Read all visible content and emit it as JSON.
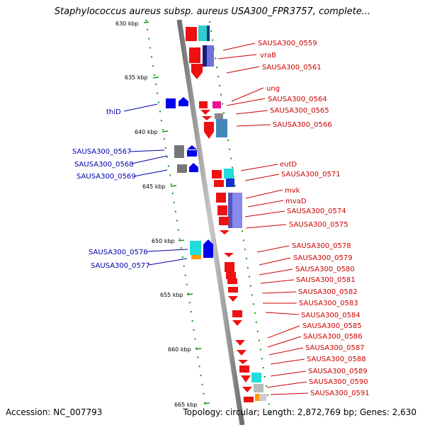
{
  "title": "Staphylococcus aureus subsp. aureus USA300_FPR3757, complete...",
  "footer": {
    "accession": "Accession: NC_007793",
    "topology": "Topology: circular; Length: 2,872,769 bp; Genes: 2,630"
  },
  "colors": {
    "backbone": "#8c8c8c",
    "forward_label": "#cc0000",
    "reverse_label": "#0000aa",
    "tick": "#119911",
    "forward_gene": "#ee1111",
    "reverse_gene": "#0000ee"
  },
  "ticks": [
    {
      "label": "630 kbp",
      "kbp": 630
    },
    {
      "label": "635 kbp",
      "kbp": 635
    },
    {
      "label": "640 kbp",
      "kbp": 640
    },
    {
      "label": "645 kbp",
      "kbp": 645
    },
    {
      "label": "650 kbp",
      "kbp": 650
    },
    {
      "label": "655 kbp",
      "kbp": 655
    },
    {
      "label": "660 kbp",
      "kbp": 660
    },
    {
      "label": "665 kbp",
      "kbp": 665
    }
  ],
  "forward_labels": [
    "SAUSA300_0559",
    "vraB",
    "SAUSA300_0561",
    "ung",
    "SAUSA300_0564",
    "SAUSA300_0565",
    "SAUSA300_0566",
    "eutD",
    "SAUSA300_0571",
    "mvk",
    "mvaD",
    "SAUSA300_0574",
    "SAUSA300_0575",
    "SAUSA300_0578",
    "SAUSA300_0579",
    "SAUSA300_0580",
    "SAUSA300_0581",
    "SAUSA300_0582",
    "SAUSA300_0583",
    "SAUSA300_0584",
    "SAUSA300_0585",
    "SAUSA300_0586",
    "SAUSA300_0587",
    "SAUSA300_0588",
    "SAUSA300_0589",
    "SAUSA300_0590",
    "SAUSA300_0591"
  ],
  "reverse_labels": [
    "thiD",
    "SAUSA300_0567",
    "SAUSA300_0568",
    "SAUSA300_0569",
    "SAUSA300_0576",
    "SAUSA300_0577"
  ]
}
